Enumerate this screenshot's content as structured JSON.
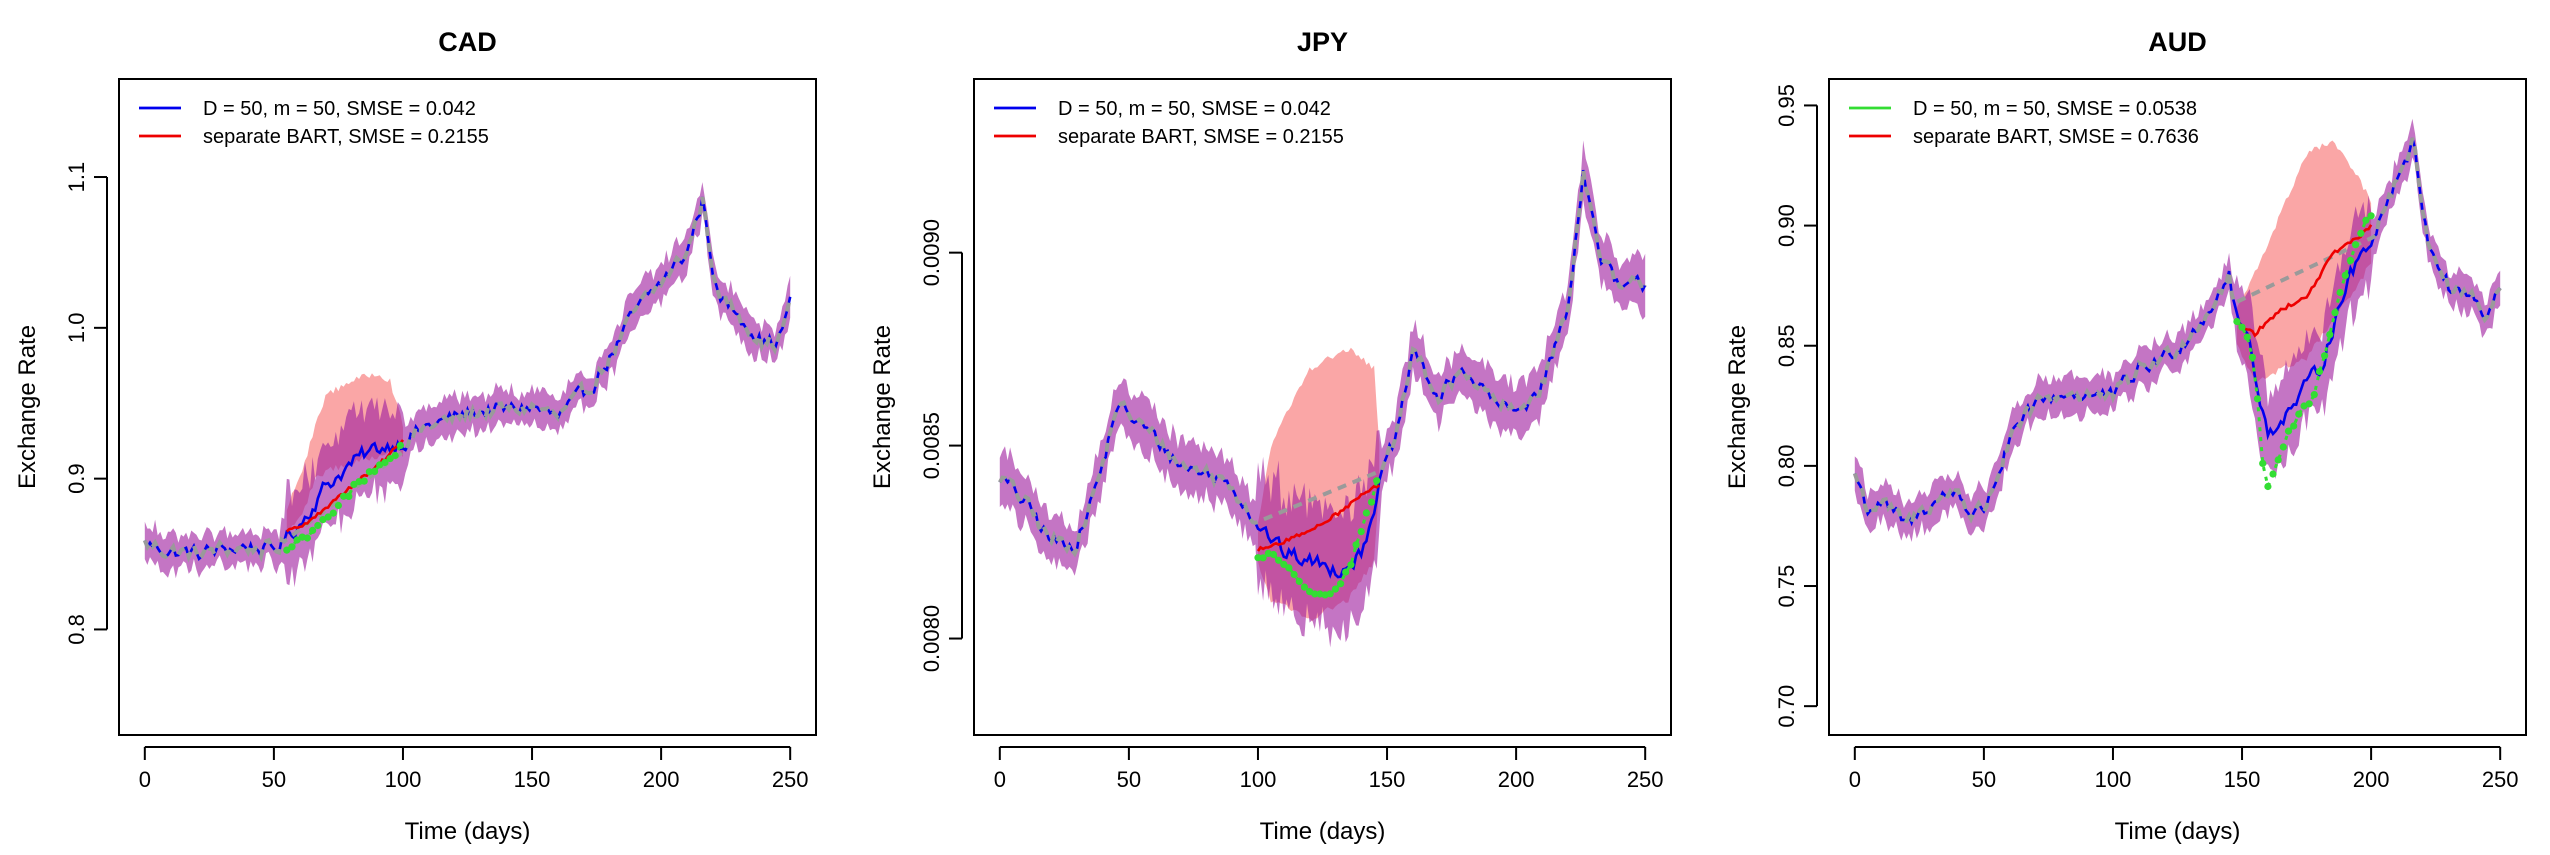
{
  "colors": {
    "model": "#0000ee",
    "separate": "#ee0000",
    "observed": "#9a9a9a",
    "holdout_model": "#33dd33",
    "holdout_separate": "#ee0000",
    "band_model": "#a020a0",
    "band_separate": "#f88080"
  },
  "chart_data": [
    {
      "type": "line",
      "title": "CAD",
      "xlabel": "Time (days)",
      "ylabel": "Exchange Rate",
      "xlim": [
        -10,
        260
      ],
      "ylim": [
        0.73,
        1.165
      ],
      "xticks": [
        0,
        50,
        100,
        150,
        200,
        250
      ],
      "yticks": [
        "0.8",
        "0.9",
        "1.0",
        "1.1"
      ],
      "legend_position": "top-left",
      "legend_labels": [
        "D = 50, m = 50, SMSE = 0.042",
        "separate BART, SMSE = 0.2155"
      ],
      "legend_colors": [
        "#0000ee",
        "#ee0000"
      ],
      "holdout": [
        55,
        100
      ],
      "band_width": 0.011,
      "base_curve": [
        [
          0,
          0.857
        ],
        [
          10,
          0.852
        ],
        [
          20,
          0.85
        ],
        [
          30,
          0.853
        ],
        [
          40,
          0.855
        ],
        [
          50,
          0.852
        ],
        [
          60,
          0.87
        ],
        [
          70,
          0.895
        ],
        [
          80,
          0.91
        ],
        [
          90,
          0.92
        ],
        [
          100,
          0.925
        ],
        [
          110,
          0.935
        ],
        [
          120,
          0.94
        ],
        [
          130,
          0.945
        ],
        [
          140,
          0.945
        ],
        [
          150,
          0.948
        ],
        [
          160,
          0.94
        ],
        [
          170,
          0.955
        ],
        [
          180,
          0.98
        ],
        [
          190,
          1.01
        ],
        [
          200,
          1.03
        ],
        [
          210,
          1.05
        ],
        [
          216,
          1.085
        ],
        [
          222,
          1.02
        ],
        [
          230,
          1.01
        ],
        [
          240,
          0.99
        ],
        [
          245,
          0.99
        ],
        [
          250,
          1.015
        ]
      ],
      "separate_curve": [
        [
          55,
          0.865
        ],
        [
          60,
          0.868
        ],
        [
          70,
          0.88
        ],
        [
          80,
          0.895
        ],
        [
          90,
          0.908
        ],
        [
          100,
          0.925
        ]
      ],
      "separate_band": [
        [
          55,
          0.862,
          0.88
        ],
        [
          62,
          0.88,
          0.91
        ],
        [
          66,
          0.9,
          0.935
        ],
        [
          70,
          0.905,
          0.955
        ],
        [
          80,
          0.91,
          0.965
        ],
        [
          90,
          0.915,
          0.97
        ],
        [
          95,
          0.92,
          0.965
        ],
        [
          100,
          0.915,
          0.935
        ]
      ],
      "holdout_points": [
        [
          55,
          0.855
        ],
        [
          60,
          0.86
        ],
        [
          65,
          0.865
        ],
        [
          70,
          0.875
        ],
        [
          75,
          0.882
        ],
        [
          80,
          0.893
        ],
        [
          85,
          0.9
        ],
        [
          90,
          0.907
        ],
        [
          95,
          0.915
        ],
        [
          100,
          0.922
        ]
      ]
    },
    {
      "type": "line",
      "title": "JPY",
      "xlabel": "Time (days)",
      "ylabel": "Exchange Rate",
      "xlim": [
        -10,
        260
      ],
      "ylim": [
        0.00775,
        0.00945
      ],
      "xticks": [
        0,
        50,
        100,
        150,
        200,
        250
      ],
      "yticks": [
        "0.0080",
        "0.0085",
        "0.0090"
      ],
      "legend_position": "top-left",
      "legend_labels": [
        "D = 50, m = 50, SMSE = 0.042",
        "separate BART, SMSE = 0.2155"
      ],
      "legend_colors": [
        "#0000ee",
        "#ee0000"
      ],
      "holdout": [
        100,
        147
      ],
      "band_width": 6e-05,
      "base_curve": [
        [
          0,
          0.00842
        ],
        [
          10,
          0.00835
        ],
        [
          20,
          0.00825
        ],
        [
          30,
          0.00825
        ],
        [
          40,
          0.00845
        ],
        [
          45,
          0.0086
        ],
        [
          50,
          0.00858
        ],
        [
          60,
          0.00852
        ],
        [
          70,
          0.00845
        ],
        [
          80,
          0.00843
        ],
        [
          90,
          0.0084
        ],
        [
          100,
          0.0083
        ],
        [
          110,
          0.00822
        ],
        [
          120,
          0.0082
        ],
        [
          130,
          0.00818
        ],
        [
          140,
          0.00822
        ],
        [
          147,
          0.0084
        ],
        [
          155,
          0.00855
        ],
        [
          160,
          0.00875
        ],
        [
          170,
          0.00862
        ],
        [
          180,
          0.0087
        ],
        [
          190,
          0.00862
        ],
        [
          200,
          0.00858
        ],
        [
          210,
          0.00866
        ],
        [
          220,
          0.00885
        ],
        [
          226,
          0.00922
        ],
        [
          232,
          0.009
        ],
        [
          240,
          0.0089
        ],
        [
          250,
          0.00892
        ]
      ],
      "separate_curve": [
        [
          100,
          0.00823
        ],
        [
          110,
          0.00825
        ],
        [
          120,
          0.00828
        ],
        [
          130,
          0.00832
        ],
        [
          140,
          0.00837
        ],
        [
          147,
          0.0084
        ]
      ],
      "separate_band": [
        [
          100,
          0.0082,
          0.0083
        ],
        [
          105,
          0.0081,
          0.0085
        ],
        [
          120,
          0.00805,
          0.0087
        ],
        [
          135,
          0.0081,
          0.00875
        ],
        [
          145,
          0.0082,
          0.0087
        ],
        [
          147,
          0.0084,
          0.0085
        ]
      ],
      "holdout_points": [
        [
          100,
          0.0082
        ],
        [
          105,
          0.00822
        ],
        [
          110,
          0.0082
        ],
        [
          115,
          0.00815
        ],
        [
          120,
          0.00813
        ],
        [
          125,
          0.0081
        ],
        [
          130,
          0.00812
        ],
        [
          135,
          0.00818
        ],
        [
          140,
          0.00828
        ],
        [
          145,
          0.00838
        ],
        [
          147,
          0.00842
        ]
      ]
    },
    {
      "type": "line",
      "title": "AUD",
      "xlabel": "Time (days)",
      "ylabel": "Exchange Rate",
      "xlim": [
        -10,
        260
      ],
      "ylim": [
        0.688,
        0.961
      ],
      "xticks": [
        0,
        50,
        100,
        150,
        200,
        250
      ],
      "yticks": [
        "0.70",
        "0.75",
        "0.80",
        "0.85",
        "0.90",
        "0.95"
      ],
      "legend_position": "top-left",
      "legend_labels": [
        "D = 50, m = 50, SMSE = 0.0538",
        "separate BART, SMSE = 0.7636"
      ],
      "legend_colors": [
        "#33dd33",
        "#ee0000"
      ],
      "holdout": [
        148,
        200
      ],
      "band_width": 0.007,
      "base_curve": [
        [
          0,
          0.797
        ],
        [
          5,
          0.782
        ],
        [
          10,
          0.785
        ],
        [
          20,
          0.775
        ],
        [
          30,
          0.785
        ],
        [
          40,
          0.79
        ],
        [
          45,
          0.78
        ],
        [
          50,
          0.782
        ],
        [
          60,
          0.81
        ],
        [
          70,
          0.825
        ],
        [
          80,
          0.83
        ],
        [
          90,
          0.83
        ],
        [
          100,
          0.828
        ],
        [
          110,
          0.84
        ],
        [
          120,
          0.845
        ],
        [
          130,
          0.855
        ],
        [
          140,
          0.87
        ],
        [
          145,
          0.88
        ],
        [
          148,
          0.86
        ],
        [
          152,
          0.855
        ],
        [
          155,
          0.84
        ],
        [
          160,
          0.812
        ],
        [
          165,
          0.82
        ],
        [
          170,
          0.825
        ],
        [
          180,
          0.84
        ],
        [
          190,
          0.875
        ],
        [
          200,
          0.895
        ],
        [
          210,
          0.92
        ],
        [
          216,
          0.935
        ],
        [
          222,
          0.895
        ],
        [
          230,
          0.875
        ],
        [
          240,
          0.87
        ],
        [
          245,
          0.86
        ],
        [
          250,
          0.875
        ]
      ],
      "separate_curve": [
        [
          148,
          0.86
        ],
        [
          155,
          0.855
        ],
        [
          165,
          0.865
        ],
        [
          175,
          0.87
        ],
        [
          185,
          0.888
        ],
        [
          195,
          0.895
        ],
        [
          200,
          0.9
        ]
      ],
      "separate_band": [
        [
          148,
          0.85,
          0.865
        ],
        [
          155,
          0.835,
          0.88
        ],
        [
          165,
          0.84,
          0.905
        ],
        [
          175,
          0.845,
          0.93
        ],
        [
          185,
          0.86,
          0.935
        ],
        [
          195,
          0.875,
          0.92
        ],
        [
          200,
          0.885,
          0.91
        ]
      ],
      "holdout_points": [
        [
          148,
          0.86
        ],
        [
          152,
          0.855
        ],
        [
          155,
          0.84
        ],
        [
          159,
          0.788
        ],
        [
          163,
          0.8
        ],
        [
          168,
          0.815
        ],
        [
          172,
          0.82
        ],
        [
          178,
          0.83
        ],
        [
          185,
          0.86
        ],
        [
          190,
          0.88
        ],
        [
          195,
          0.895
        ],
        [
          200,
          0.905
        ]
      ]
    }
  ]
}
